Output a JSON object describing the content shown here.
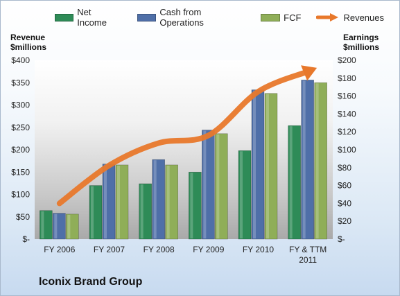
{
  "chart_data": {
    "type": "bar",
    "title": "Iconix Brand Group",
    "categories": [
      "FY 2006",
      "FY 2007",
      "FY 2008",
      "FY 2009",
      "FY 2010",
      "FY & TTM 2011"
    ],
    "category_lines": [
      [
        "FY 2006"
      ],
      [
        "FY 2007"
      ],
      [
        "FY 2008"
      ],
      [
        "FY 2009"
      ],
      [
        "FY 2010"
      ],
      [
        "FY & TTM",
        "2011"
      ]
    ],
    "series": [
      {
        "name": "Net Income",
        "axis": "right",
        "color": "#2e8b57",
        "values": [
          32,
          60,
          62,
          75,
          99,
          127
        ]
      },
      {
        "name": "Cash from Operations",
        "axis": "right",
        "color": "#4f6fa8",
        "values": [
          29,
          84,
          89,
          122,
          167,
          178
        ]
      },
      {
        "name": "FCF",
        "axis": "right",
        "color": "#8fae58",
        "values": [
          28,
          83,
          83,
          118,
          163,
          175
        ]
      }
    ],
    "line_series": {
      "name": "Revenues",
      "axis": "left",
      "color": "#e8782b",
      "values": [
        80,
        165,
        215,
        232,
        330,
        375
      ]
    },
    "ylabel_left": [
      "Revenue",
      "$millions"
    ],
    "ylabel_right": [
      "Earnings",
      "$millions"
    ],
    "left_axis": {
      "ylim": [
        0,
        400
      ],
      "ticks": [
        "$-",
        "$50",
        "$100",
        "$150",
        "$200",
        "$250",
        "$300",
        "$350",
        "$400"
      ]
    },
    "right_axis": {
      "ylim": [
        0,
        200
      ],
      "ticks": [
        "$-",
        "$20",
        "$40",
        "$60",
        "$80",
        "$100",
        "$120",
        "$140",
        "$160",
        "$180",
        "$200"
      ]
    },
    "grid": false,
    "legend": "top"
  }
}
